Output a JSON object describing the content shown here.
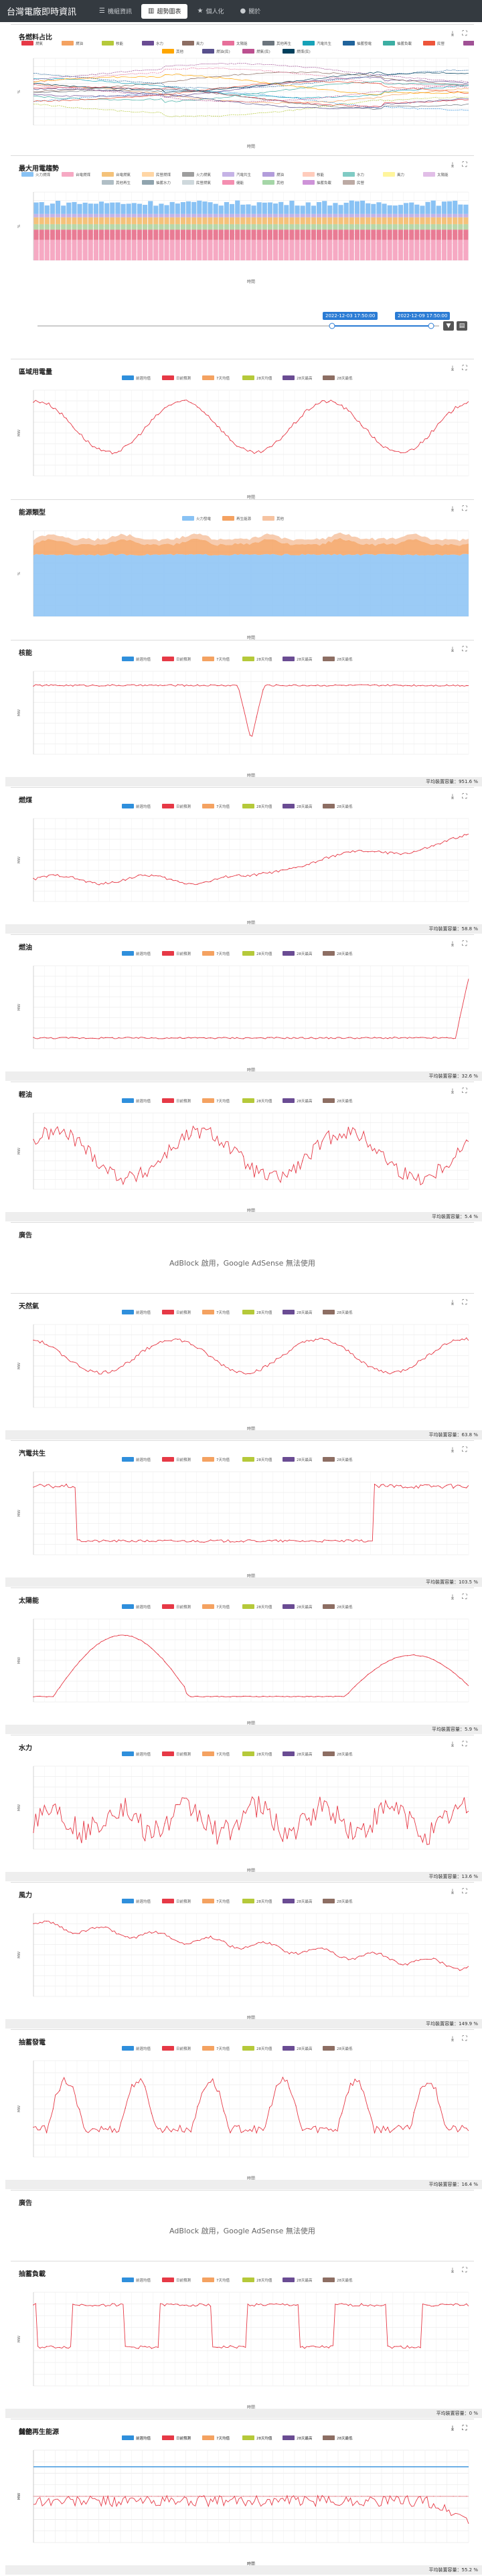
{
  "nav": {
    "brand": "台灣電廠即時資訊",
    "items": [
      {
        "label": "機組資訊",
        "icon": "list-icon",
        "active": false
      },
      {
        "label": "趨勢圖表",
        "icon": "chart-icon",
        "active": true
      },
      {
        "label": "個人化",
        "icon": "star-icon",
        "active": false
      },
      {
        "label": "關於",
        "icon": "info-icon",
        "active": false
      }
    ]
  },
  "slider": {
    "start_label": "2022-12-03 17:50:00",
    "end_label": "2022-12-09 17:50:00"
  },
  "legend_six": [
    "前週均值",
    "日前預測",
    "7天均值",
    "28天均值",
    "28天最高",
    "28天最低"
  ],
  "legend_fuel": [
    "燃煤",
    "燃氣",
    "燃油",
    "核能",
    "水力",
    "風力",
    "太陽能",
    "其他再生",
    "汽電共生",
    "抽蓄發電",
    "抽蓄負載",
    "民營",
    "儲能",
    "其他",
    "燃油(民)",
    "燃氣(民)",
    "燃煤(民)"
  ],
  "legend_type": [
    "火力發電",
    "再生能源",
    "其他"
  ],
  "legend_ratio": [
    "火力燃煤",
    "台電燃煤",
    "台電燃氣",
    "民營燃煤",
    "火力燃氣",
    "汽電共生",
    "燃油",
    "核能",
    "水力",
    "風力",
    "太陽能",
    "其他再生",
    "抽蓄水力",
    "民營燃氣",
    "儲能",
    "其他",
    "抽蓄負載",
    "民營"
  ],
  "avg_prefix": "平均裝置容量：",
  "ads": [
    {
      "title": "廣告",
      "text": "AdBlock 啟用，Google AdSense 無法使用"
    },
    {
      "title": "廣告",
      "text": "AdBlock 啟用，Google AdSense 無法使用"
    }
  ],
  "x_title": "時間",
  "cards": [
    {
      "title": "各燃料占比",
      "ylabel": "%"
    },
    {
      "title": "最大用電趨勢",
      "ylabel": "%"
    },
    {
      "title": "區域用電量",
      "ylabel": "MW"
    },
    {
      "title": "能源類型",
      "ylabel": "%"
    },
    {
      "title": "核能",
      "ylabel": "MW",
      "avg": "平均裝置容量：951.6 %"
    },
    {
      "title": "燃煤",
      "ylabel": "MW",
      "avg": "平均裝置容量：58.8 %"
    },
    {
      "title": "燃油",
      "ylabel": "MW",
      "avg": "平均裝置容量：32.6 %"
    },
    {
      "title": "輕油",
      "ylabel": "MW",
      "avg": "平均裝置容量：5.4 %"
    },
    {
      "title": "天然氣",
      "ylabel": "MW",
      "avg": "平均裝置容量：63.8 %"
    },
    {
      "title": "汽電共生",
      "ylabel": "MW",
      "avg": "平均裝置容量：103.5 %"
    },
    {
      "title": "太陽能",
      "ylabel": "MW",
      "avg": "平均裝置容量：5.9 %"
    },
    {
      "title": "水力",
      "ylabel": "MW",
      "avg": "平均裝置容量：13.6 %"
    },
    {
      "title": "風力",
      "ylabel": "MW",
      "avg": "平均裝置容量：149.9 %"
    },
    {
      "title": "抽蓄發電",
      "ylabel": "MW",
      "avg": "平均裝置容量：16.4 %"
    },
    {
      "title": "抽蓄負載",
      "ylabel": "MW",
      "avg": "平均裝置容量：0 %"
    },
    {
      "title": "儲能",
      "ylabel": "MW",
      "avg": "平均裝置容量：0 %"
    },
    {
      "title": "其他再生能源",
      "ylabel": "MW",
      "avg": "平均裝置容量：55.2 %"
    }
  ],
  "colors": {
    "red": "#e63946",
    "blue": "#2f8fdc",
    "orange": "#f4a261",
    "olive": "#b5c93a",
    "purple": "#6a4c93",
    "brown": "#8d6e63",
    "pink": "#f6a9c3",
    "sky": "#89c2f4"
  }
}
